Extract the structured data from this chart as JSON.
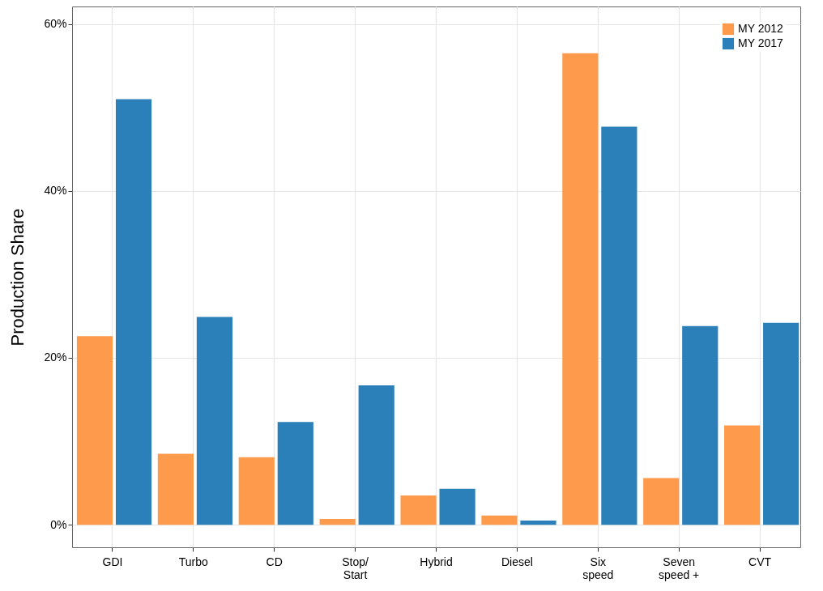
{
  "chart_data": {
    "type": "bar",
    "ylabel": "Production Share",
    "categories": [
      "GDI",
      "Turbo",
      "CD",
      "Stop/\nStart",
      "Hybrid",
      "Diesel",
      "Six\nspeed",
      "Seven\nspeed +",
      "CVT"
    ],
    "series": [
      {
        "name": "MY 2012",
        "color": "#fd9a4b",
        "values": [
          22.6,
          8.5,
          8.1,
          0.7,
          3.5,
          1.1,
          56.5,
          5.6,
          11.9
        ]
      },
      {
        "name": "MY 2017",
        "color": "#2b80b9",
        "values": [
          51.0,
          24.9,
          12.3,
          16.7,
          4.3,
          0.5,
          47.7,
          23.8,
          24.2
        ]
      }
    ],
    "ylim": [
      -2.7,
      62.1
    ],
    "yticks": [
      {
        "value": 0,
        "label": "0%"
      },
      {
        "value": 20,
        "label": "20%"
      },
      {
        "value": 40,
        "label": "40%"
      },
      {
        "value": 60,
        "label": "60%"
      }
    ],
    "grid": true,
    "legend": "top right"
  }
}
